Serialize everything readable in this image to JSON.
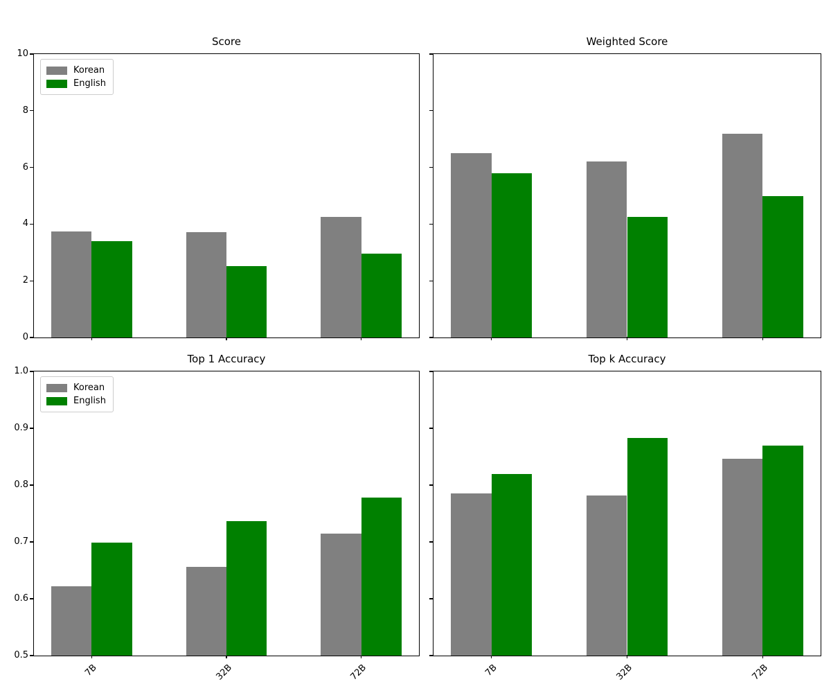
{
  "figure": {
    "background": "#ffffff"
  },
  "chart_data": [
    {
      "type": "bar",
      "title": "Score",
      "categories": [
        "7B",
        "32B",
        "72B"
      ],
      "series": [
        {
          "name": "Korean",
          "color": "#808080",
          "values": [
            3.74,
            3.72,
            4.26
          ]
        },
        {
          "name": "English",
          "color": "#008000",
          "values": [
            3.4,
            2.53,
            2.96
          ]
        }
      ],
      "ylim": [
        0,
        10
      ],
      "yticks": {
        "values": [
          0,
          2,
          4,
          6,
          8,
          10
        ],
        "labels": [
          "0",
          "2",
          "4",
          "6",
          "8",
          "10"
        ]
      },
      "show_ytick_labels": true,
      "show_xtick_labels": false,
      "legend": true,
      "legend_position": "upper left",
      "grid": false
    },
    {
      "type": "bar",
      "title": "Weighted Score",
      "categories": [
        "7B",
        "32B",
        "72B"
      ],
      "series": [
        {
          "name": "Korean",
          "color": "#808080",
          "values": [
            6.5,
            6.2,
            7.2
          ]
        },
        {
          "name": "English",
          "color": "#008000",
          "values": [
            5.8,
            4.25,
            5.0
          ]
        }
      ],
      "ylim": [
        0,
        10
      ],
      "yticks": {
        "values": [
          0,
          2,
          4,
          6,
          8,
          10
        ],
        "labels": [
          "0",
          "2",
          "4",
          "6",
          "8",
          "10"
        ]
      },
      "show_ytick_labels": false,
      "show_xtick_labels": false,
      "legend": false,
      "legend_position": null,
      "grid": false
    },
    {
      "type": "bar",
      "title": "Top 1 Accuracy",
      "categories": [
        "7B",
        "32B",
        "72B"
      ],
      "series": [
        {
          "name": "Korean",
          "color": "#808080",
          "values": [
            0.622,
            0.656,
            0.715
          ]
        },
        {
          "name": "English",
          "color": "#008000",
          "values": [
            0.699,
            0.737,
            0.778
          ]
        }
      ],
      "ylim": [
        0.5,
        1.0
      ],
      "yticks": {
        "values": [
          0.5,
          0.6,
          0.7,
          0.8,
          0.9,
          1.0
        ],
        "labels": [
          "0.5",
          "0.6",
          "0.7",
          "0.8",
          "0.9",
          "1.0"
        ]
      },
      "show_ytick_labels": true,
      "show_xtick_labels": true,
      "legend": true,
      "legend_position": "upper left",
      "grid": false
    },
    {
      "type": "bar",
      "title": "Top k Accuracy",
      "categories": [
        "7B",
        "32B",
        "72B"
      ],
      "series": [
        {
          "name": "Korean",
          "color": "#808080",
          "values": [
            0.785,
            0.782,
            0.846
          ]
        },
        {
          "name": "English",
          "color": "#008000",
          "values": [
            0.82,
            0.883,
            0.87
          ]
        }
      ],
      "ylim": [
        0.5,
        1.0
      ],
      "yticks": {
        "values": [
          0.5,
          0.6,
          0.7,
          0.8,
          0.9,
          1.0
        ],
        "labels": [
          "0.5",
          "0.6",
          "0.7",
          "0.8",
          "0.9",
          "1.0"
        ]
      },
      "show_ytick_labels": false,
      "show_xtick_labels": true,
      "legend": false,
      "legend_position": null,
      "grid": false
    }
  ]
}
